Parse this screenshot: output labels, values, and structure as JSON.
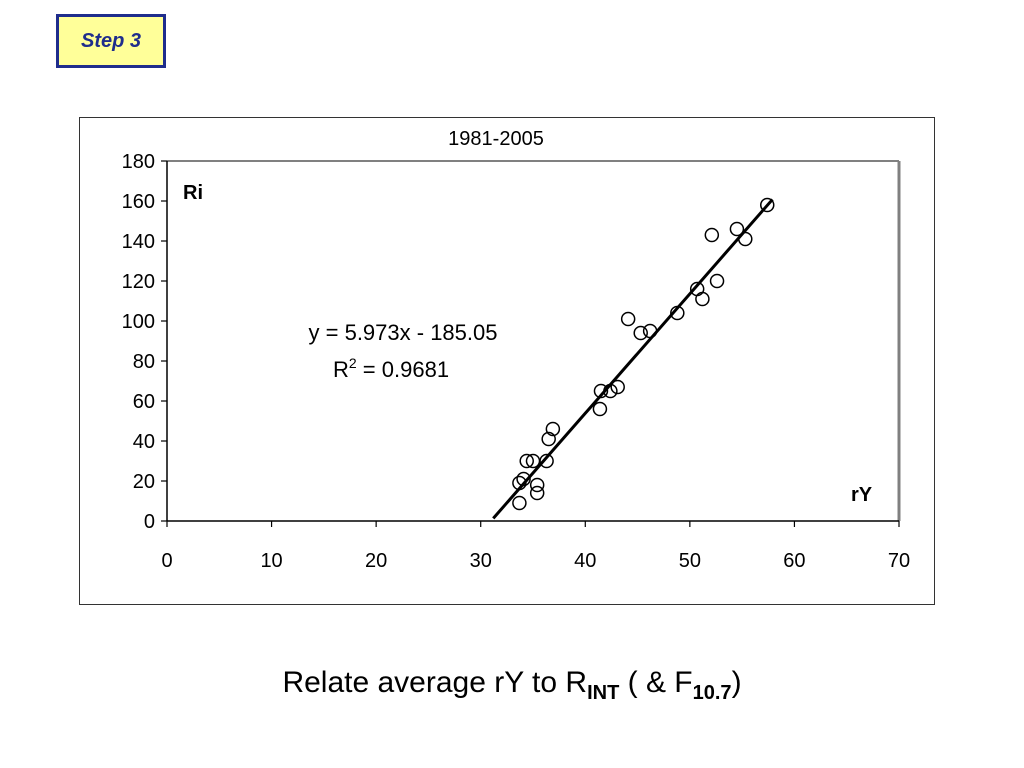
{
  "step_label": "Step 3",
  "caption": {
    "main": "Relate average rY to R",
    "sub1": "INT",
    "mid": " ( & F",
    "sub2": "10.7",
    "end": ")"
  },
  "chart_data": {
    "type": "scatter",
    "title": "1981-2005",
    "xlabel": "rY",
    "ylabel": "Ri",
    "xlim": [
      0,
      70
    ],
    "ylim": [
      0,
      180
    ],
    "x_ticks": [
      0,
      10,
      20,
      30,
      40,
      50,
      60,
      70
    ],
    "y_ticks": [
      0,
      20,
      40,
      60,
      80,
      100,
      120,
      140,
      160,
      180
    ],
    "grid": false,
    "legend": "none",
    "points": [
      {
        "x": 33.7,
        "y": 9
      },
      {
        "x": 33.7,
        "y": 19
      },
      {
        "x": 34.1,
        "y": 21
      },
      {
        "x": 34.4,
        "y": 30
      },
      {
        "x": 35.0,
        "y": 30
      },
      {
        "x": 35.4,
        "y": 14
      },
      {
        "x": 35.4,
        "y": 18
      },
      {
        "x": 36.3,
        "y": 30
      },
      {
        "x": 36.5,
        "y": 41
      },
      {
        "x": 36.9,
        "y": 46
      },
      {
        "x": 41.4,
        "y": 56
      },
      {
        "x": 41.5,
        "y": 65
      },
      {
        "x": 42.4,
        "y": 65
      },
      {
        "x": 43.1,
        "y": 67
      },
      {
        "x": 44.1,
        "y": 101
      },
      {
        "x": 45.3,
        "y": 94
      },
      {
        "x": 46.2,
        "y": 95
      },
      {
        "x": 48.8,
        "y": 104
      },
      {
        "x": 50.7,
        "y": 116
      },
      {
        "x": 51.2,
        "y": 111
      },
      {
        "x": 52.1,
        "y": 143
      },
      {
        "x": 52.6,
        "y": 120
      },
      {
        "x": 54.5,
        "y": 146
      },
      {
        "x": 55.3,
        "y": 141
      },
      {
        "x": 57.4,
        "y": 158
      }
    ],
    "trendline": {
      "slope": 5.973,
      "intercept": -185.05,
      "x_range": [
        31.2,
        57.9
      ],
      "equation": "y = 5.973x - 185.05",
      "r2_prefix": "R",
      "r2_sup": "2",
      "r2_value": " = 0.9681"
    },
    "colors": {
      "marker": "#000000",
      "line": "#000000",
      "plot_border": "#808080"
    }
  }
}
